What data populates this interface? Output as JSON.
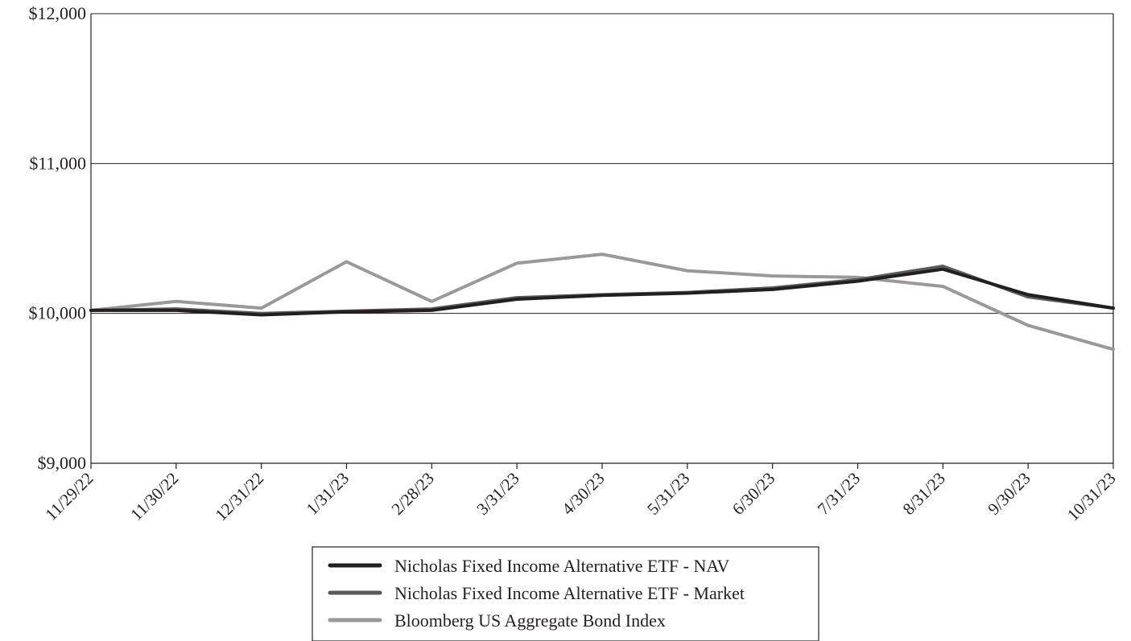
{
  "chart_data": {
    "type": "line",
    "title": "",
    "xlabel": "",
    "ylabel": "",
    "categories": [
      "11/29/22",
      "11/30/22",
      "12/31/22",
      "1/31/23",
      "2/28/23",
      "3/31/23",
      "4/30/23",
      "5/31/23",
      "6/30/23",
      "7/31/23",
      "8/31/23",
      "9/30/23",
      "10/31/23"
    ],
    "y_ticks": [
      {
        "value": 9000,
        "label": "$9,000"
      },
      {
        "value": 10000,
        "label": "$10,000"
      },
      {
        "value": 11000,
        "label": "$11,000"
      },
      {
        "value": 12000,
        "label": "$12,000"
      }
    ],
    "ylim": [
      9000,
      12000
    ],
    "grid": "horizontal",
    "legend_position": "bottom-center",
    "series": [
      {
        "name": "Bloomberg US Aggregate Bond Index",
        "color": "#999999",
        "values": [
          10020,
          10080,
          10035,
          10345,
          10080,
          10335,
          10395,
          10285,
          10250,
          10240,
          10180,
          9920,
          9760
        ]
      },
      {
        "name": "Nicholas Fixed Income Alternative ETF - Market",
        "color": "#5a5a5a",
        "values": [
          10020,
          10030,
          10000,
          10015,
          10030,
          10105,
          10125,
          10140,
          10170,
          10225,
          10315,
          10110,
          10035
        ]
      },
      {
        "name": "Nicholas Fixed Income Alternative ETF - NAV",
        "color": "#231f20",
        "values": [
          10020,
          10020,
          9990,
          10010,
          10020,
          10095,
          10120,
          10135,
          10160,
          10215,
          10295,
          10125,
          10035
        ]
      }
    ],
    "legend_order": [
      "Nicholas Fixed Income Alternative ETF - NAV",
      "Nicholas Fixed Income Alternative ETF - Market",
      "Bloomberg US Aggregate Bond Index"
    ]
  }
}
